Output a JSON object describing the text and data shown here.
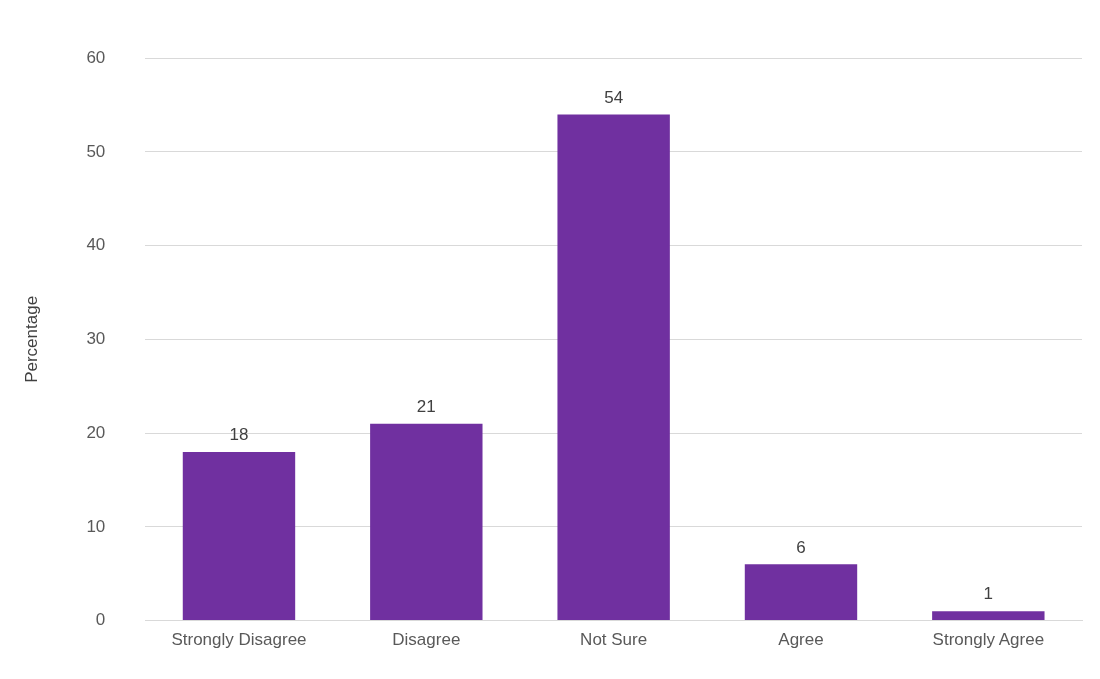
{
  "chart_data": {
    "type": "bar",
    "ylabel": "Percentage",
    "categories": [
      "Strongly Disagree",
      "Disagree",
      "Not Sure",
      "Agree",
      "Strongly Agree"
    ],
    "values": [
      18,
      21,
      54,
      6,
      1
    ],
    "color": "#7030a0",
    "ylim": [
      0,
      60
    ],
    "yticks": [
      0,
      10,
      20,
      30,
      40,
      50,
      60
    ],
    "grid": "y",
    "data_labels": true,
    "legend": false
  }
}
